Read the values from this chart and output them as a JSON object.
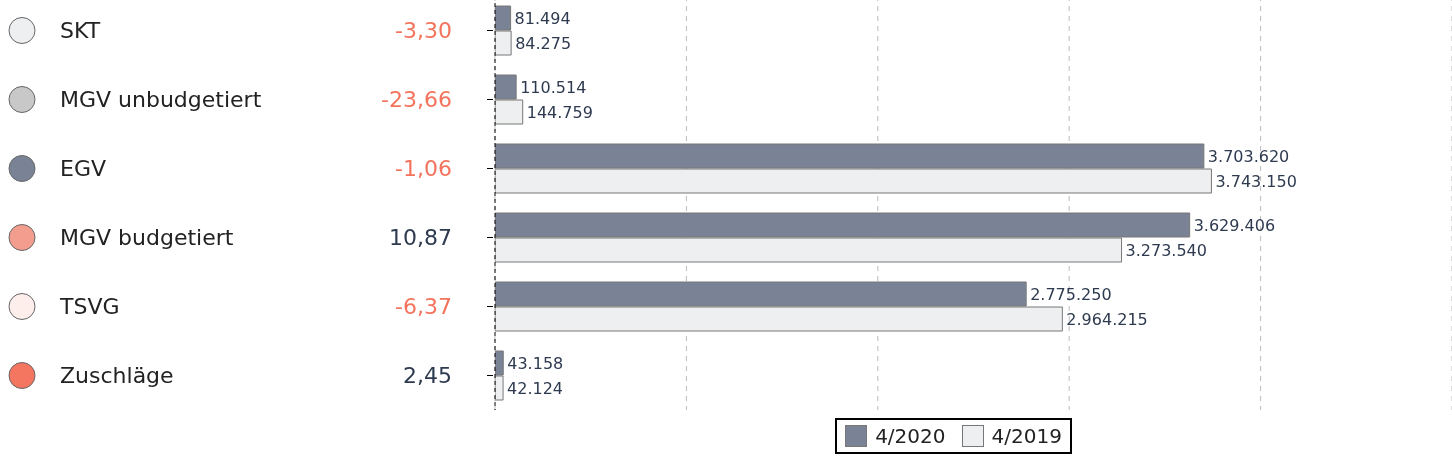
{
  "chart_data": {
    "type": "bar",
    "orientation": "horizontal",
    "categories": [
      "SKT",
      "MGV unbudgetiert",
      "EGV",
      "MGV budgetiert",
      "TSVG",
      "Zuschläge"
    ],
    "series": [
      {
        "name": "4/2020",
        "color": "#7a8396",
        "values": [
          81494,
          110514,
          3703620,
          3629406,
          2775250,
          43158
        ],
        "value_labels": [
          "81.494",
          "110.514",
          "3.703.620",
          "3.629.406",
          "2.775.250",
          "43.158"
        ]
      },
      {
        "name": "4/2019",
        "color": "#eeeff0",
        "values": [
          84275,
          144759,
          3743150,
          3273540,
          2964215,
          42124
        ],
        "value_labels": [
          "84.275",
          "144.759",
          "3.743.150",
          "3.273.540",
          "2.964.215",
          "42.124"
        ]
      }
    ],
    "xlim": [
      0,
      5000000
    ],
    "tick_labels": "y",
    "grid": "x",
    "legend": "bottom",
    "annotations": [
      "-3,30",
      "-23,66",
      "-1,06",
      "10,87",
      "-6,37",
      "2,45"
    ]
  }
}
